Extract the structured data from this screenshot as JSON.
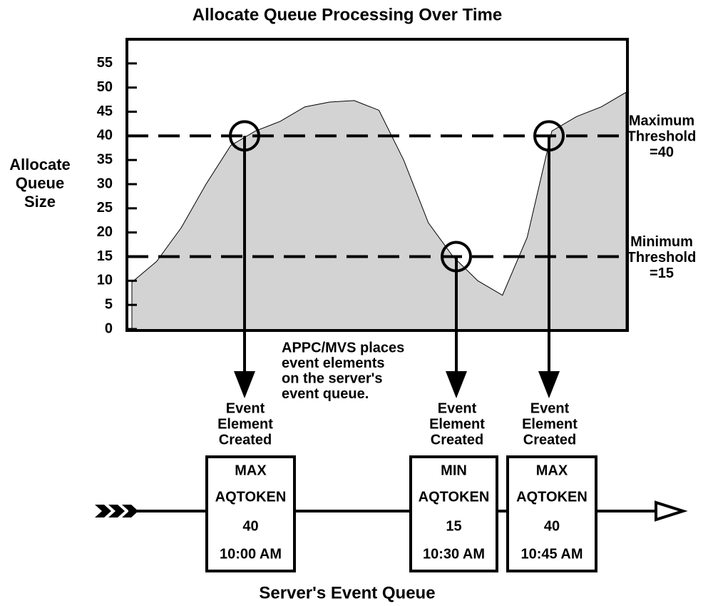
{
  "chart_data": {
    "type": "area",
    "title": "Allocate Queue Processing Over Time",
    "y_label": [
      "Allocate",
      "Queue",
      "Size"
    ],
    "categories": [
      null,
      null,
      null,
      null,
      null,
      null,
      null,
      null,
      null,
      null,
      null,
      null,
      null,
      null,
      null,
      null,
      null,
      null,
      null,
      null,
      null
    ],
    "values": [
      9.7,
      14,
      21,
      30,
      38,
      41,
      43,
      46,
      47,
      47.3,
      45.3,
      35,
      22,
      15,
      10,
      7,
      19,
      41,
      44,
      46,
      49
    ],
    "color": "#d3d3d3",
    "ylim": [
      0,
      60
    ],
    "yticks": [
      0,
      5,
      10,
      15,
      20,
      25,
      30,
      35,
      40,
      45,
      50,
      55
    ],
    "thresholds": [
      {
        "value": 40,
        "label": [
          "Maximum",
          "Threshold",
          "=40"
        ]
      },
      {
        "value": 15,
        "label": [
          "Minimum",
          "Threshold",
          "=15"
        ]
      }
    ]
  },
  "diagram": {
    "note": [
      "APPC/MVS places",
      "event elements",
      "on the server's",
      "event queue."
    ],
    "events": [
      {
        "caption": [
          "Event",
          "Element",
          "Created"
        ],
        "box": [
          "MAX",
          "AQTOKEN",
          "40",
          "10:00 AM"
        ]
      },
      {
        "caption": [
          "Event",
          "Element",
          "Created"
        ],
        "box": [
          "MIN",
          "AQTOKEN",
          "15",
          "10:30 AM"
        ]
      },
      {
        "caption": [
          "Event",
          "Element",
          "Created"
        ],
        "box": [
          "MAX",
          "AQTOKEN",
          "40",
          "10:45 AM"
        ]
      }
    ],
    "footer": "Server's Event Queue"
  }
}
